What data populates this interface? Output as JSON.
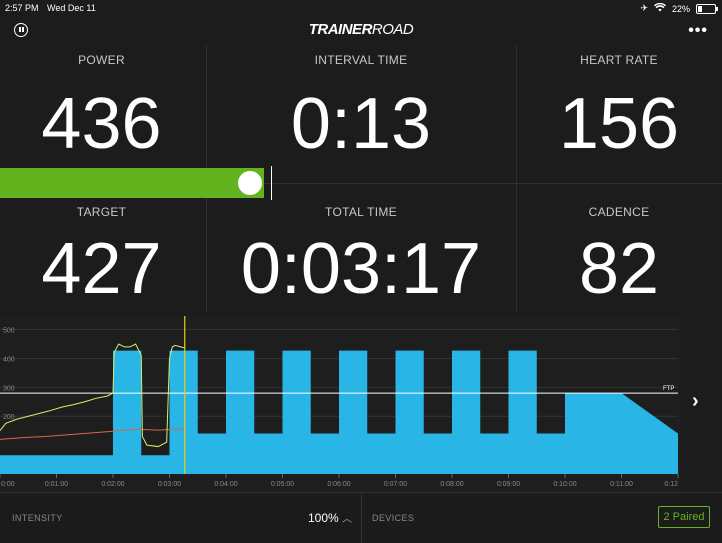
{
  "statusbar": {
    "time": "2:57 PM",
    "date": "Wed Dec 11",
    "battery": "22%",
    "battery_level": 0.22
  },
  "header": {
    "logo_bold": "TRAINER",
    "logo_light": "ROAD"
  },
  "metrics": {
    "power": {
      "label": "POWER",
      "value": "436"
    },
    "interval_time": {
      "label": "INTERVAL TIME",
      "value": "0:13"
    },
    "heart_rate": {
      "label": "HEART RATE",
      "value": "156"
    },
    "target": {
      "label": "TARGET",
      "value": "427"
    },
    "total_time": {
      "label": "TOTAL TIME",
      "value": "0:03:17"
    },
    "cadence": {
      "label": "CADENCE",
      "value": "82"
    }
  },
  "chart_data": {
    "type": "area",
    "ytick_labels": [
      "500",
      "400",
      "300",
      "200"
    ],
    "yticks": [
      500,
      400,
      300,
      200
    ],
    "ylim": [
      0,
      540
    ],
    "xlim": [
      0,
      12
    ],
    "xtick_labels": [
      "0:00",
      "0:01:00",
      "0:02:00",
      "0:03:00",
      "0:04:00",
      "0:05:00",
      "0:06:00",
      "0:07:00",
      "0:08:00",
      "0:09:00",
      "0:10:00",
      "0:11:00",
      "0:12"
    ],
    "ftp_label": "FTP",
    "ftp": 280,
    "current_time": 3.27,
    "series": [
      {
        "role": "workout target",
        "color": "#29b6e6",
        "x": [
          0,
          2.0,
          2.0,
          2.5,
          2.5,
          3.0,
          3.0,
          3.5,
          3.5,
          4.0,
          4.0,
          4.5,
          4.5,
          5.0,
          5.0,
          5.5,
          5.5,
          6.0,
          6.0,
          6.5,
          6.5,
          7.0,
          7.0,
          7.5,
          7.5,
          8.0,
          8.0,
          8.5,
          8.5,
          9.0,
          9.0,
          9.5,
          9.5,
          10.0,
          10.0,
          11.0,
          12.0
        ],
        "y": [
          65,
          65,
          427,
          427,
          65,
          65,
          427,
          427,
          140,
          140,
          427,
          427,
          140,
          140,
          427,
          427,
          140,
          140,
          427,
          427,
          140,
          140,
          427,
          427,
          140,
          140,
          427,
          427,
          140,
          140,
          427,
          427,
          140,
          140,
          280,
          280,
          140
        ]
      },
      {
        "role": "power",
        "color": "#d4f26a",
        "x": [
          0,
          0.1,
          0.3,
          0.5,
          0.7,
          0.9,
          1.1,
          1.3,
          1.5,
          1.7,
          1.9,
          2.0,
          2.02,
          2.1,
          2.2,
          2.3,
          2.4,
          2.5,
          2.52,
          2.6,
          2.8,
          2.95,
          3.0,
          3.05,
          3.1,
          3.2,
          3.27
        ],
        "y": [
          150,
          175,
          190,
          200,
          210,
          220,
          232,
          240,
          250,
          262,
          270,
          280,
          420,
          450,
          440,
          440,
          450,
          410,
          130,
          100,
          95,
          110,
          400,
          440,
          445,
          440,
          436
        ]
      },
      {
        "role": "heart rate",
        "color": "#d7664a",
        "x": [
          0,
          0.4,
          0.8,
          1.2,
          1.6,
          2.0,
          2.4,
          2.8,
          3.27
        ],
        "y": [
          120,
          126,
          130,
          136,
          142,
          148,
          155,
          152,
          156
        ]
      }
    ]
  },
  "bottom": {
    "intensity_label": "INTENSITY",
    "intensity_value": "100%",
    "devices_label": "DEVICES",
    "paired_label": "2 Paired"
  },
  "power_bar": {
    "fill_fraction": 0.96,
    "target_fraction": 0.985
  },
  "colors": {
    "accent_green": "#63b31f",
    "workout_blue": "#29b6e6"
  }
}
